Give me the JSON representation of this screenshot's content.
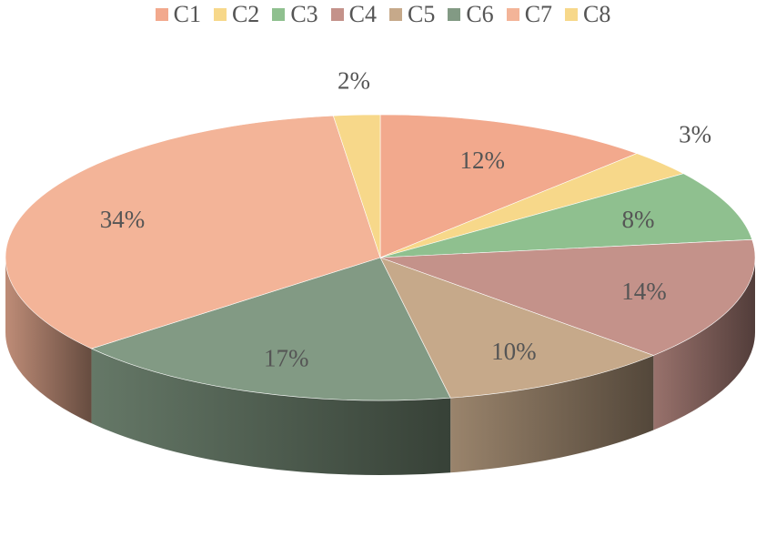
{
  "chart_data": {
    "type": "pie",
    "title": "",
    "legend_position": "top",
    "categories": [
      "C1",
      "C2",
      "C3",
      "C4",
      "C5",
      "C6",
      "C7",
      "C8"
    ],
    "values": [
      12,
      3,
      8,
      14,
      10,
      17,
      34,
      2
    ],
    "labels": [
      "12%",
      "3%",
      "8%",
      "14%",
      "10%",
      "17%",
      "34%",
      "2%"
    ],
    "colors": [
      "#f2a98d",
      "#f7d88a",
      "#8fc08f",
      "#c4928a",
      "#c6a98a",
      "#829a84",
      "#f3b498",
      "#f7d88a"
    ],
    "style": "3d"
  }
}
